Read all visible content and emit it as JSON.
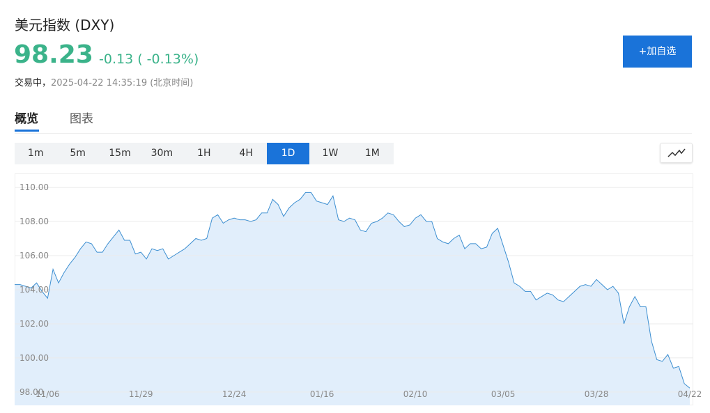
{
  "header": {
    "title": "美元指数 (DXY)",
    "price": "98.23",
    "change": "-0.13 ( -0.13%)",
    "status": "交易中，",
    "timestamp": "2025-04-22 14:35:19 (北京时间)",
    "button": "+加自选"
  },
  "tabs": [
    "概览",
    "图表"
  ],
  "timeframes": [
    "1m",
    "5m",
    "15m",
    "30m",
    "1H",
    "4H",
    "1D",
    "1W",
    "1M"
  ],
  "active_timeframe": "1D",
  "chart_data": {
    "type": "line",
    "color": "#3d8fd1",
    "fill": "#e1eefb",
    "grid": true,
    "ylim": [
      97.22,
      110.82
    ],
    "yticks": [
      {
        "value": 98,
        "label": "98.00"
      },
      {
        "value": 100,
        "label": "100.00"
      },
      {
        "value": 102,
        "label": "102.00"
      },
      {
        "value": 104,
        "label": "104.00"
      },
      {
        "value": 106,
        "label": "106.00"
      },
      {
        "value": 108,
        "label": "108.00"
      },
      {
        "value": 110,
        "label": "110.00"
      }
    ],
    "categories": [
      null,
      null,
      null,
      null,
      null,
      null,
      "11/06",
      null,
      null,
      null,
      null,
      null,
      null,
      null,
      null,
      null,
      null,
      null,
      null,
      null,
      null,
      null,
      null,
      "11/29",
      null,
      null,
      null,
      null,
      null,
      null,
      null,
      null,
      null,
      null,
      null,
      null,
      null,
      null,
      null,
      null,
      "12/24",
      null,
      null,
      null,
      null,
      null,
      null,
      null,
      null,
      null,
      null,
      null,
      null,
      null,
      null,
      null,
      "01/16",
      null,
      null,
      null,
      null,
      null,
      null,
      null,
      null,
      null,
      null,
      null,
      null,
      null,
      null,
      null,
      null,
      "02/10",
      null,
      null,
      null,
      null,
      null,
      null,
      null,
      null,
      null,
      null,
      null,
      null,
      null,
      null,
      null,
      "03/05",
      null,
      null,
      null,
      null,
      null,
      null,
      null,
      null,
      null,
      null,
      null,
      null,
      null,
      null,
      null,
      null,
      "03/28",
      null,
      null,
      null,
      null,
      null,
      null,
      null,
      null,
      null,
      null,
      null,
      null,
      null,
      null,
      null,
      null,
      "04/22"
    ],
    "values": [
      104.3,
      104.3,
      104.2,
      104.1,
      104.4,
      103.9,
      103.5,
      105.2,
      104.4,
      105.0,
      105.5,
      105.9,
      106.4,
      106.8,
      106.7,
      106.2,
      106.2,
      106.7,
      107.1,
      107.5,
      106.9,
      106.9,
      106.1,
      106.2,
      105.8,
      106.4,
      106.3,
      106.4,
      105.8,
      106.0,
      106.2,
      106.4,
      106.7,
      107.0,
      106.9,
      107.0,
      108.2,
      108.4,
      107.9,
      108.1,
      108.2,
      108.1,
      108.1,
      108.0,
      108.1,
      108.5,
      108.5,
      109.3,
      109.0,
      108.3,
      108.8,
      109.1,
      109.3,
      109.7,
      109.7,
      109.2,
      109.1,
      109.0,
      109.5,
      108.1,
      108.0,
      108.2,
      108.1,
      107.5,
      107.4,
      107.9,
      108.0,
      108.2,
      108.5,
      108.4,
      108.0,
      107.7,
      107.8,
      108.2,
      108.4,
      108.0,
      108.0,
      107.0,
      106.8,
      106.7,
      107.0,
      107.2,
      106.4,
      106.7,
      106.7,
      106.4,
      106.5,
      107.3,
      107.6,
      106.6,
      105.6,
      104.4,
      104.2,
      103.9,
      103.9,
      103.4,
      103.6,
      103.8,
      103.7,
      103.4,
      103.3,
      103.6,
      103.9,
      104.2,
      104.3,
      104.2,
      104.6,
      104.3,
      104.0,
      104.2,
      103.8,
      102.0,
      103.0,
      103.6,
      103.0,
      103.0,
      101.0,
      99.9,
      99.8,
      100.2,
      99.4,
      99.5,
      98.5,
      98.23
    ]
  }
}
